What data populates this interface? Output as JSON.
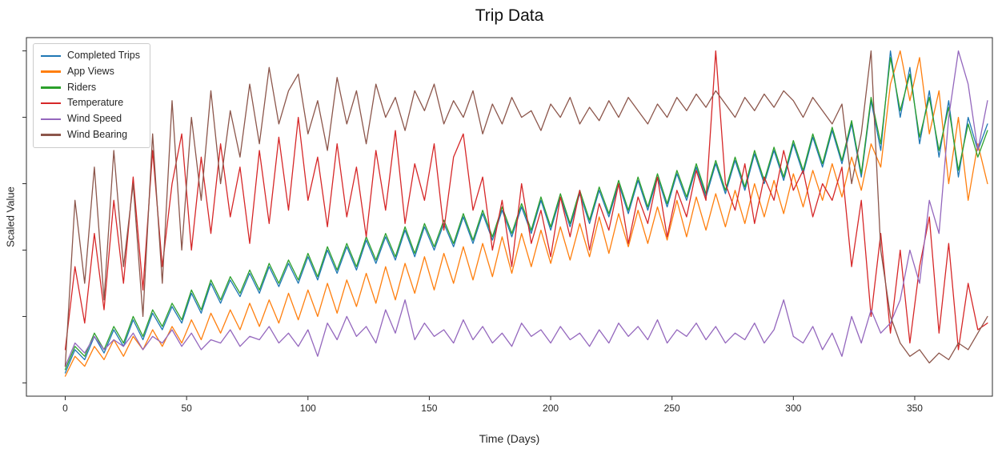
{
  "chart_data": {
    "type": "line",
    "title": "Trip Data",
    "xlabel": "Time (Days)",
    "ylabel": "Scaled Value",
    "grid": false,
    "legend_position": "upper-left",
    "x_range": [
      -16,
      382
    ],
    "y_range": [
      -0.04,
      1.04
    ],
    "xticks": [
      0,
      50,
      100,
      150,
      200,
      250,
      300,
      350
    ],
    "yticks": [
      0,
      0.2,
      0.4,
      0.6,
      0.8,
      1.0
    ],
    "x": [
      0,
      4,
      8,
      12,
      16,
      20,
      24,
      28,
      32,
      36,
      40,
      44,
      48,
      52,
      56,
      60,
      64,
      68,
      72,
      76,
      80,
      84,
      88,
      92,
      96,
      100,
      104,
      108,
      112,
      116,
      120,
      124,
      128,
      132,
      136,
      140,
      144,
      148,
      152,
      156,
      160,
      164,
      168,
      172,
      176,
      180,
      184,
      188,
      192,
      196,
      200,
      204,
      208,
      212,
      216,
      220,
      224,
      228,
      232,
      236,
      240,
      244,
      248,
      252,
      256,
      260,
      264,
      268,
      272,
      276,
      280,
      284,
      288,
      292,
      296,
      300,
      304,
      308,
      312,
      316,
      320,
      324,
      328,
      332,
      336,
      340,
      344,
      348,
      352,
      356,
      360,
      364,
      368,
      372,
      376,
      380
    ],
    "series": [
      {
        "name": "Completed Trips",
        "color": "#1f77b4",
        "values": [
          0.03,
          0.1,
          0.07,
          0.14,
          0.09,
          0.16,
          0.11,
          0.19,
          0.13,
          0.21,
          0.16,
          0.23,
          0.18,
          0.27,
          0.21,
          0.3,
          0.24,
          0.31,
          0.26,
          0.33,
          0.27,
          0.35,
          0.29,
          0.36,
          0.3,
          0.38,
          0.31,
          0.4,
          0.33,
          0.41,
          0.34,
          0.43,
          0.36,
          0.44,
          0.37,
          0.46,
          0.38,
          0.47,
          0.4,
          0.48,
          0.41,
          0.5,
          0.42,
          0.51,
          0.43,
          0.52,
          0.44,
          0.53,
          0.45,
          0.55,
          0.46,
          0.56,
          0.47,
          0.57,
          0.48,
          0.58,
          0.5,
          0.6,
          0.51,
          0.61,
          0.52,
          0.62,
          0.53,
          0.63,
          0.55,
          0.65,
          0.56,
          0.66,
          0.57,
          0.67,
          0.58,
          0.69,
          0.6,
          0.7,
          0.61,
          0.72,
          0.63,
          0.74,
          0.65,
          0.76,
          0.66,
          0.78,
          0.62,
          0.85,
          0.7,
          1.0,
          0.8,
          0.95,
          0.72,
          0.88,
          0.68,
          0.85,
          0.62,
          0.8,
          0.7,
          0.78
        ]
      },
      {
        "name": "App Views",
        "color": "#ff7f0e",
        "values": [
          0.02,
          0.08,
          0.05,
          0.11,
          0.07,
          0.13,
          0.08,
          0.14,
          0.1,
          0.16,
          0.11,
          0.17,
          0.12,
          0.19,
          0.13,
          0.21,
          0.15,
          0.22,
          0.16,
          0.24,
          0.17,
          0.25,
          0.18,
          0.27,
          0.19,
          0.28,
          0.2,
          0.3,
          0.21,
          0.31,
          0.23,
          0.33,
          0.24,
          0.35,
          0.25,
          0.36,
          0.27,
          0.38,
          0.28,
          0.39,
          0.3,
          0.41,
          0.31,
          0.42,
          0.32,
          0.44,
          0.33,
          0.45,
          0.35,
          0.46,
          0.36,
          0.47,
          0.37,
          0.48,
          0.38,
          0.5,
          0.39,
          0.51,
          0.41,
          0.52,
          0.42,
          0.53,
          0.43,
          0.55,
          0.44,
          0.56,
          0.46,
          0.57,
          0.47,
          0.58,
          0.48,
          0.6,
          0.5,
          0.61,
          0.51,
          0.63,
          0.53,
          0.64,
          0.55,
          0.66,
          0.56,
          0.68,
          0.58,
          0.72,
          0.65,
          0.9,
          1.0,
          0.85,
          0.98,
          0.75,
          0.88,
          0.6,
          0.8,
          0.55,
          0.72,
          0.6
        ]
      },
      {
        "name": "Riders",
        "color": "#2ca02c",
        "values": [
          0.04,
          0.11,
          0.08,
          0.15,
          0.1,
          0.17,
          0.12,
          0.2,
          0.14,
          0.22,
          0.17,
          0.24,
          0.19,
          0.28,
          0.22,
          0.31,
          0.25,
          0.32,
          0.27,
          0.34,
          0.28,
          0.36,
          0.3,
          0.37,
          0.31,
          0.39,
          0.32,
          0.41,
          0.34,
          0.42,
          0.35,
          0.44,
          0.37,
          0.45,
          0.38,
          0.47,
          0.39,
          0.48,
          0.41,
          0.49,
          0.42,
          0.51,
          0.43,
          0.52,
          0.44,
          0.53,
          0.45,
          0.54,
          0.46,
          0.56,
          0.47,
          0.57,
          0.48,
          0.58,
          0.49,
          0.59,
          0.51,
          0.61,
          0.52,
          0.62,
          0.53,
          0.63,
          0.54,
          0.64,
          0.56,
          0.66,
          0.57,
          0.67,
          0.58,
          0.68,
          0.59,
          0.7,
          0.61,
          0.71,
          0.62,
          0.73,
          0.64,
          0.75,
          0.66,
          0.77,
          0.67,
          0.79,
          0.63,
          0.86,
          0.72,
          0.98,
          0.82,
          0.93,
          0.74,
          0.86,
          0.7,
          0.83,
          0.64,
          0.78,
          0.68,
          0.76
        ]
      },
      {
        "name": "Temperature",
        "color": "#d62728",
        "values": [
          0.1,
          0.35,
          0.18,
          0.45,
          0.22,
          0.55,
          0.3,
          0.62,
          0.28,
          0.7,
          0.35,
          0.6,
          0.75,
          0.4,
          0.68,
          0.45,
          0.72,
          0.5,
          0.65,
          0.42,
          0.7,
          0.48,
          0.74,
          0.52,
          0.8,
          0.55,
          0.68,
          0.47,
          0.72,
          0.5,
          0.65,
          0.44,
          0.7,
          0.52,
          0.76,
          0.48,
          0.66,
          0.55,
          0.72,
          0.46,
          0.68,
          0.75,
          0.52,
          0.62,
          0.4,
          0.55,
          0.35,
          0.6,
          0.42,
          0.52,
          0.38,
          0.56,
          0.44,
          0.58,
          0.4,
          0.54,
          0.46,
          0.6,
          0.42,
          0.56,
          0.48,
          0.62,
          0.44,
          0.58,
          0.5,
          0.64,
          0.55,
          1.0,
          0.6,
          0.52,
          0.66,
          0.48,
          0.62,
          0.55,
          0.7,
          0.58,
          0.64,
          0.5,
          0.6,
          0.55,
          0.65,
          0.35,
          0.55,
          0.2,
          0.45,
          0.15,
          0.4,
          0.12,
          0.35,
          0.5,
          0.15,
          0.42,
          0.1,
          0.3,
          0.16,
          0.18
        ]
      },
      {
        "name": "Wind Speed",
        "color": "#9467bd",
        "values": [
          0.05,
          0.12,
          0.09,
          0.14,
          0.1,
          0.13,
          0.11,
          0.15,
          0.1,
          0.14,
          0.12,
          0.16,
          0.11,
          0.15,
          0.1,
          0.13,
          0.12,
          0.16,
          0.11,
          0.14,
          0.13,
          0.17,
          0.12,
          0.15,
          0.11,
          0.16,
          0.08,
          0.18,
          0.13,
          0.2,
          0.14,
          0.17,
          0.12,
          0.22,
          0.15,
          0.25,
          0.13,
          0.18,
          0.14,
          0.16,
          0.12,
          0.19,
          0.13,
          0.17,
          0.12,
          0.15,
          0.11,
          0.18,
          0.14,
          0.16,
          0.12,
          0.17,
          0.13,
          0.15,
          0.11,
          0.16,
          0.12,
          0.18,
          0.14,
          0.17,
          0.13,
          0.19,
          0.12,
          0.16,
          0.14,
          0.18,
          0.13,
          0.17,
          0.12,
          0.15,
          0.13,
          0.18,
          0.12,
          0.16,
          0.25,
          0.14,
          0.12,
          0.17,
          0.1,
          0.15,
          0.08,
          0.2,
          0.12,
          0.22,
          0.15,
          0.18,
          0.25,
          0.4,
          0.3,
          0.55,
          0.45,
          0.8,
          1.0,
          0.9,
          0.7,
          0.85
        ]
      },
      {
        "name": "Wind Bearing",
        "color": "#8c564b",
        "values": [
          0.05,
          0.55,
          0.3,
          0.65,
          0.25,
          0.7,
          0.35,
          0.6,
          0.2,
          0.75,
          0.3,
          0.85,
          0.4,
          0.8,
          0.55,
          0.88,
          0.6,
          0.82,
          0.68,
          0.9,
          0.72,
          0.95,
          0.78,
          0.88,
          0.93,
          0.75,
          0.85,
          0.7,
          0.92,
          0.78,
          0.88,
          0.72,
          0.9,
          0.8,
          0.86,
          0.76,
          0.88,
          0.82,
          0.9,
          0.78,
          0.85,
          0.8,
          0.88,
          0.75,
          0.84,
          0.78,
          0.86,
          0.8,
          0.82,
          0.76,
          0.84,
          0.8,
          0.86,
          0.78,
          0.83,
          0.79,
          0.85,
          0.8,
          0.86,
          0.82,
          0.78,
          0.84,
          0.8,
          0.86,
          0.82,
          0.87,
          0.83,
          0.88,
          0.84,
          0.8,
          0.86,
          0.82,
          0.87,
          0.83,
          0.88,
          0.85,
          0.8,
          0.86,
          0.82,
          0.78,
          0.84,
          0.6,
          0.75,
          1.0,
          0.4,
          0.2,
          0.12,
          0.08,
          0.1,
          0.06,
          0.09,
          0.07,
          0.12,
          0.1,
          0.15,
          0.2
        ]
      }
    ]
  }
}
